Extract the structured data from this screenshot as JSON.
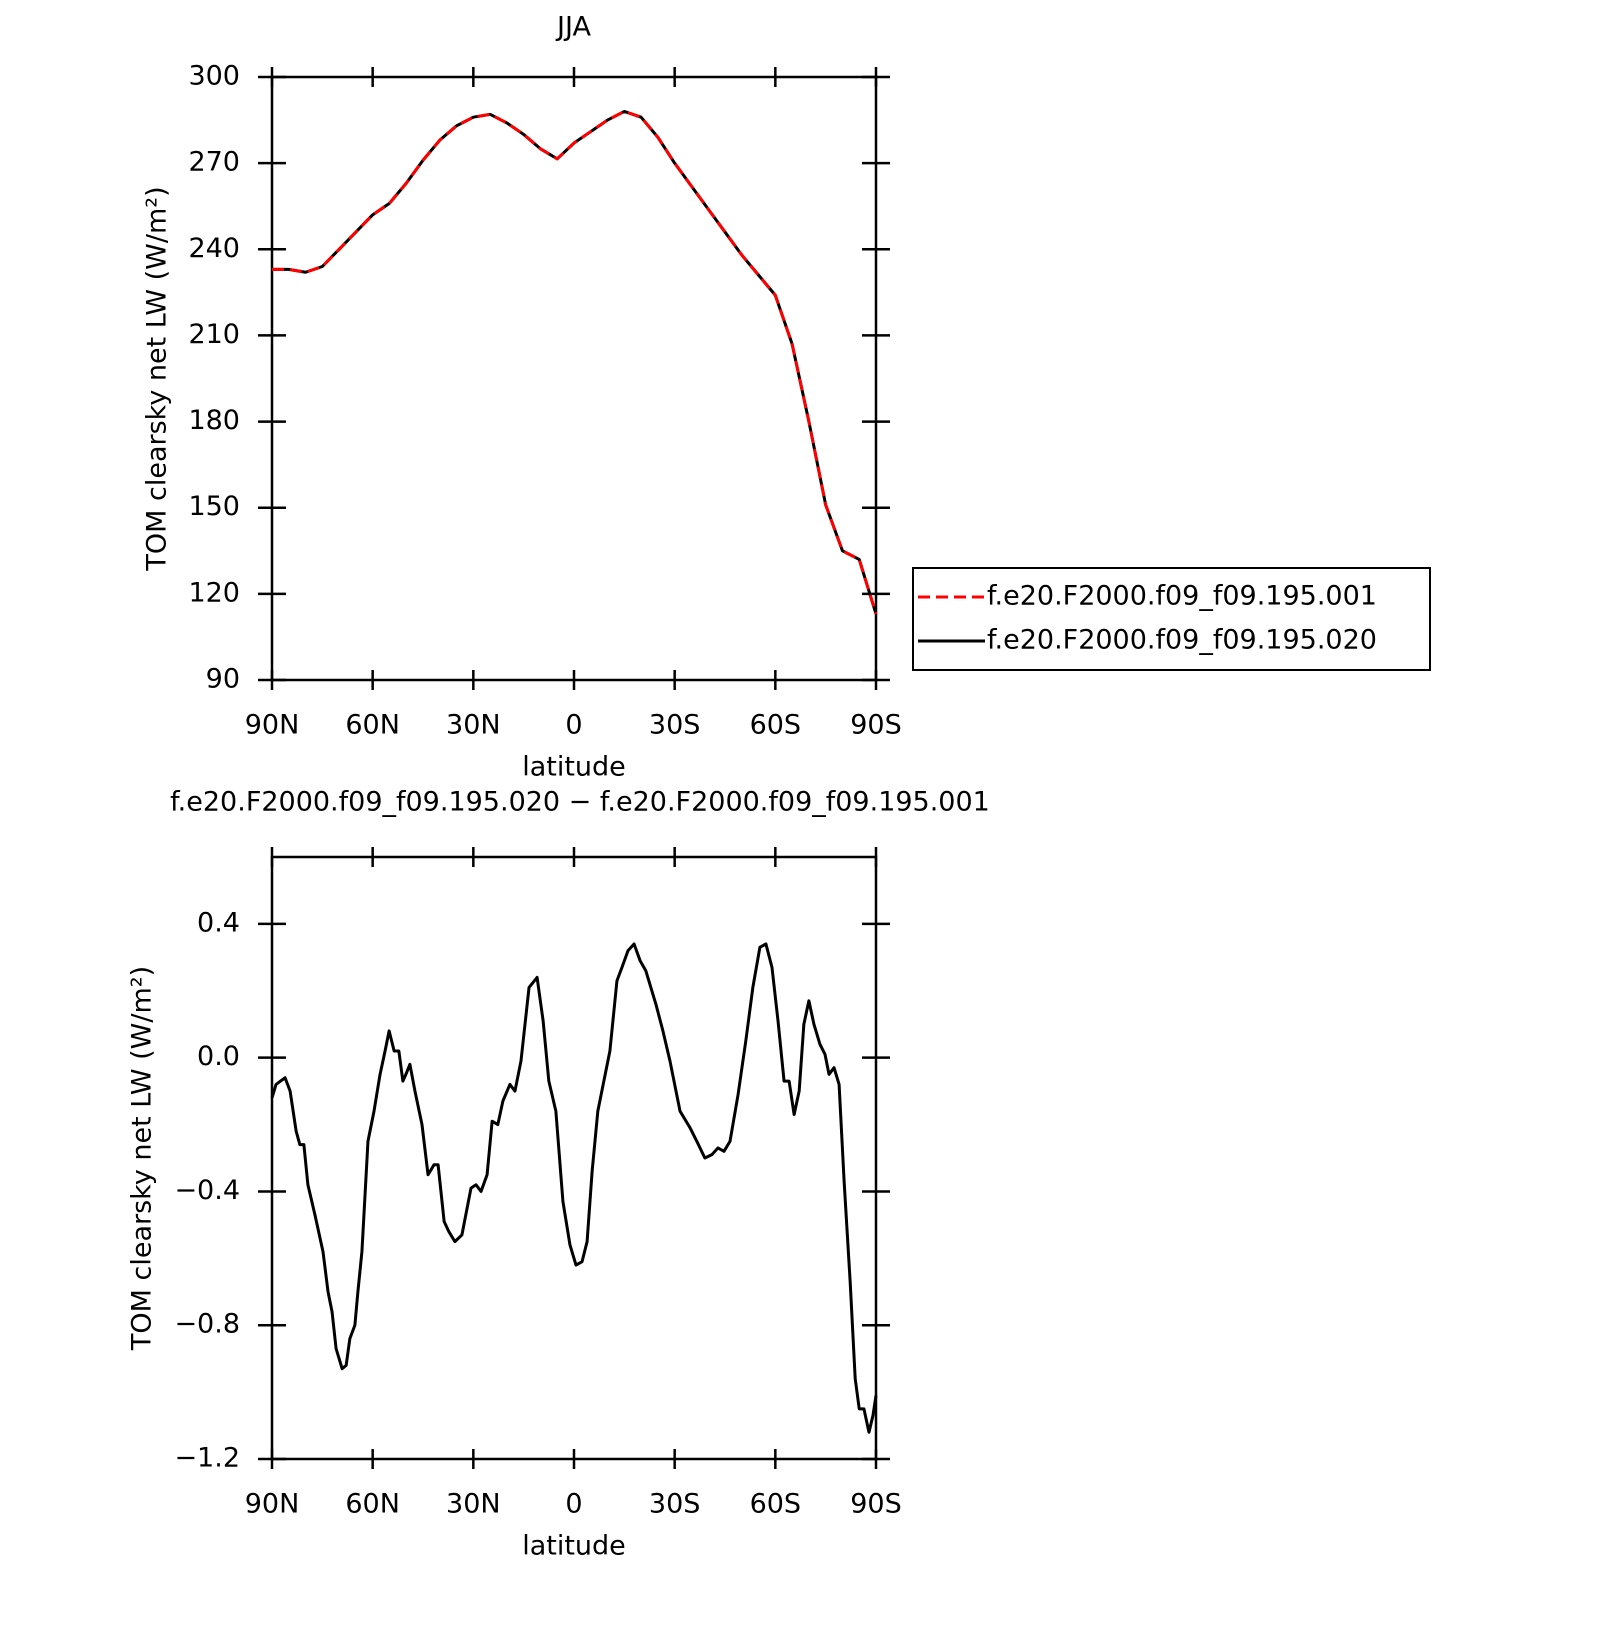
{
  "chart_data": [
    {
      "type": "line",
      "title": "JJA",
      "xlabel": "latitude",
      "ylabel": "TOM clearsky net LW (W/m²)",
      "x": [
        90,
        85,
        80,
        75,
        70,
        65,
        60,
        55,
        50,
        45,
        40,
        35,
        30,
        25,
        20,
        15,
        10,
        5,
        0,
        -5,
        -10,
        -15,
        -20,
        -25,
        -30,
        -35,
        -40,
        -45,
        -50,
        -55,
        -60,
        -65,
        -70,
        -75,
        -80,
        -85,
        -90
      ],
      "series": [
        {
          "name": "f.e20.F2000.f09_f09.195.001",
          "color": "#ff0000",
          "linestyle": "dashed",
          "values": [
            233,
            233,
            232,
            234,
            240,
            246,
            252,
            256,
            263,
            271,
            278,
            283,
            286,
            287,
            284,
            280,
            275,
            271.5,
            277,
            281,
            285,
            288,
            286,
            279,
            270,
            262,
            254,
            246,
            238,
            231,
            224,
            207,
            180,
            151,
            135,
            132,
            113
          ]
        },
        {
          "name": "f.e20.F2000.f09_f09.195.020",
          "color": "#000000",
          "linestyle": "solid",
          "values": [
            233,
            233,
            232,
            234,
            240,
            246,
            252,
            256,
            263,
            271,
            278,
            283,
            286,
            287,
            284,
            280,
            275,
            271.5,
            277,
            281,
            285,
            288,
            286,
            279,
            270,
            262,
            254,
            246,
            238,
            231,
            224,
            207,
            180,
            151,
            135,
            132,
            113
          ]
        }
      ],
      "xlim": [
        90,
        -90
      ],
      "xticks": [
        {
          "value": 90,
          "label": "90N"
        },
        {
          "value": 60,
          "label": "60N"
        },
        {
          "value": 30,
          "label": "30N"
        },
        0,
        {
          "value": -30,
          "label": "30S"
        },
        {
          "value": -60,
          "label": "60S"
        },
        {
          "value": -90,
          "label": "90S"
        }
      ],
      "ylim": [
        90,
        300
      ],
      "yticks": [
        90,
        120,
        150,
        180,
        210,
        240,
        270,
        300
      ],
      "legend": "right"
    },
    {
      "type": "line",
      "title": "f.e20.F2000.f09_f09.195.020 − f.e20.F2000.f09_f09.195.001",
      "xlabel": "latitude",
      "ylabel": "TOM clearsky net LW (W/m²)",
      "x": [
        90,
        88.8,
        86.1,
        84.6,
        82.8,
        81.7,
        80.5,
        79.3,
        77.2,
        74.8,
        73.3,
        72.1,
        70.9,
        69.1,
        67.9,
        66.8,
        65.3,
        64.4,
        63.2,
        61.4,
        59.6,
        57.8,
        56.3,
        55.1,
        53.6,
        52.2,
        51,
        50.1,
        48.9,
        47.4,
        45.3,
        43.5,
        41.7,
        40.5,
        38.7,
        37.3,
        35.5,
        33.4,
        30.7,
        29.2,
        27.7,
        25.9,
        24.4,
        22.7,
        21.2,
        19.1,
        17.6,
        15.8,
        13.4,
        11,
        9.2,
        7.5,
        5.4,
        3.3,
        1.2,
        -0.6,
        -2.4,
        -3.9,
        -5.4,
        -7.1,
        -8.9,
        -10.7,
        -12.8,
        -14.3,
        -16.1,
        -17.9,
        -19.7,
        -21.4,
        -24.4,
        -26.5,
        -28.6,
        -31.6,
        -34.6,
        -36.6,
        -39,
        -41.1,
        -42.9,
        -44.7,
        -46.5,
        -48.9,
        -51.2,
        -53.3,
        -55.4,
        -57.2,
        -59,
        -60.8,
        -62.6,
        -64.1,
        -65.6,
        -67.1,
        -68.5,
        -70,
        -71.5,
        -73.3,
        -74.8,
        -76,
        -77.5,
        -79,
        -80.5,
        -82.3,
        -83.8,
        -85,
        -86.4,
        -87.9,
        -89.1,
        -90
      ],
      "series": [
        {
          "name": "f.e20.F2000.f09_f09.195.020 − f.e20.F2000.f09_f09.195.001",
          "color": "#000000",
          "linestyle": "solid",
          "values": [
            -0.12,
            -0.08,
            -0.06,
            -0.1,
            -0.22,
            -0.26,
            -0.26,
            -0.38,
            -0.47,
            -0.58,
            -0.7,
            -0.76,
            -0.87,
            -0.93,
            -0.92,
            -0.84,
            -0.8,
            -0.7,
            -0.58,
            -0.25,
            -0.16,
            -0.05,
            0.02,
            0.08,
            0.02,
            0.02,
            -0.07,
            -0.05,
            -0.02,
            -0.1,
            -0.2,
            -0.35,
            -0.32,
            -0.32,
            -0.49,
            -0.52,
            -0.55,
            -0.53,
            -0.39,
            -0.38,
            -0.4,
            -0.35,
            -0.19,
            -0.2,
            -0.13,
            -0.08,
            -0.1,
            -0.01,
            0.21,
            0.24,
            0.11,
            -0.07,
            -0.16,
            -0.43,
            -0.56,
            -0.62,
            -0.61,
            -0.55,
            -0.34,
            -0.16,
            -0.07,
            0.02,
            0.23,
            0.27,
            0.32,
            0.34,
            0.29,
            0.26,
            0.16,
            0.08,
            -0.01,
            -0.16,
            -0.21,
            -0.25,
            -0.3,
            -0.29,
            -0.27,
            -0.28,
            -0.25,
            -0.11,
            0.05,
            0.21,
            0.33,
            0.34,
            0.27,
            0.11,
            -0.07,
            -0.07,
            -0.17,
            -0.1,
            0.1,
            0.17,
            0.1,
            0.04,
            0.01,
            -0.05,
            -0.03,
            -0.08,
            -0.37,
            -0.67,
            -0.96,
            -1.05,
            -1.05,
            -1.12,
            -1.07,
            -1.01
          ]
        }
      ],
      "xlim": [
        90,
        -90
      ],
      "xticks": [
        {
          "value": 90,
          "label": "90N"
        },
        {
          "value": 60,
          "label": "60N"
        },
        {
          "value": 30,
          "label": "30N"
        },
        0,
        {
          "value": -30,
          "label": "30S"
        },
        {
          "value": -60,
          "label": "60S"
        },
        {
          "value": -90,
          "label": "90S"
        }
      ],
      "ylim": [
        -1.2,
        0.6
      ],
      "yticks": [
        {
          "value": -1.2,
          "label": "−1.2"
        },
        {
          "value": -0.8,
          "label": "−0.8"
        },
        {
          "value": -0.4,
          "label": "−0.4"
        },
        {
          "value": 0,
          "label": "0.0"
        },
        0.4
      ]
    }
  ]
}
